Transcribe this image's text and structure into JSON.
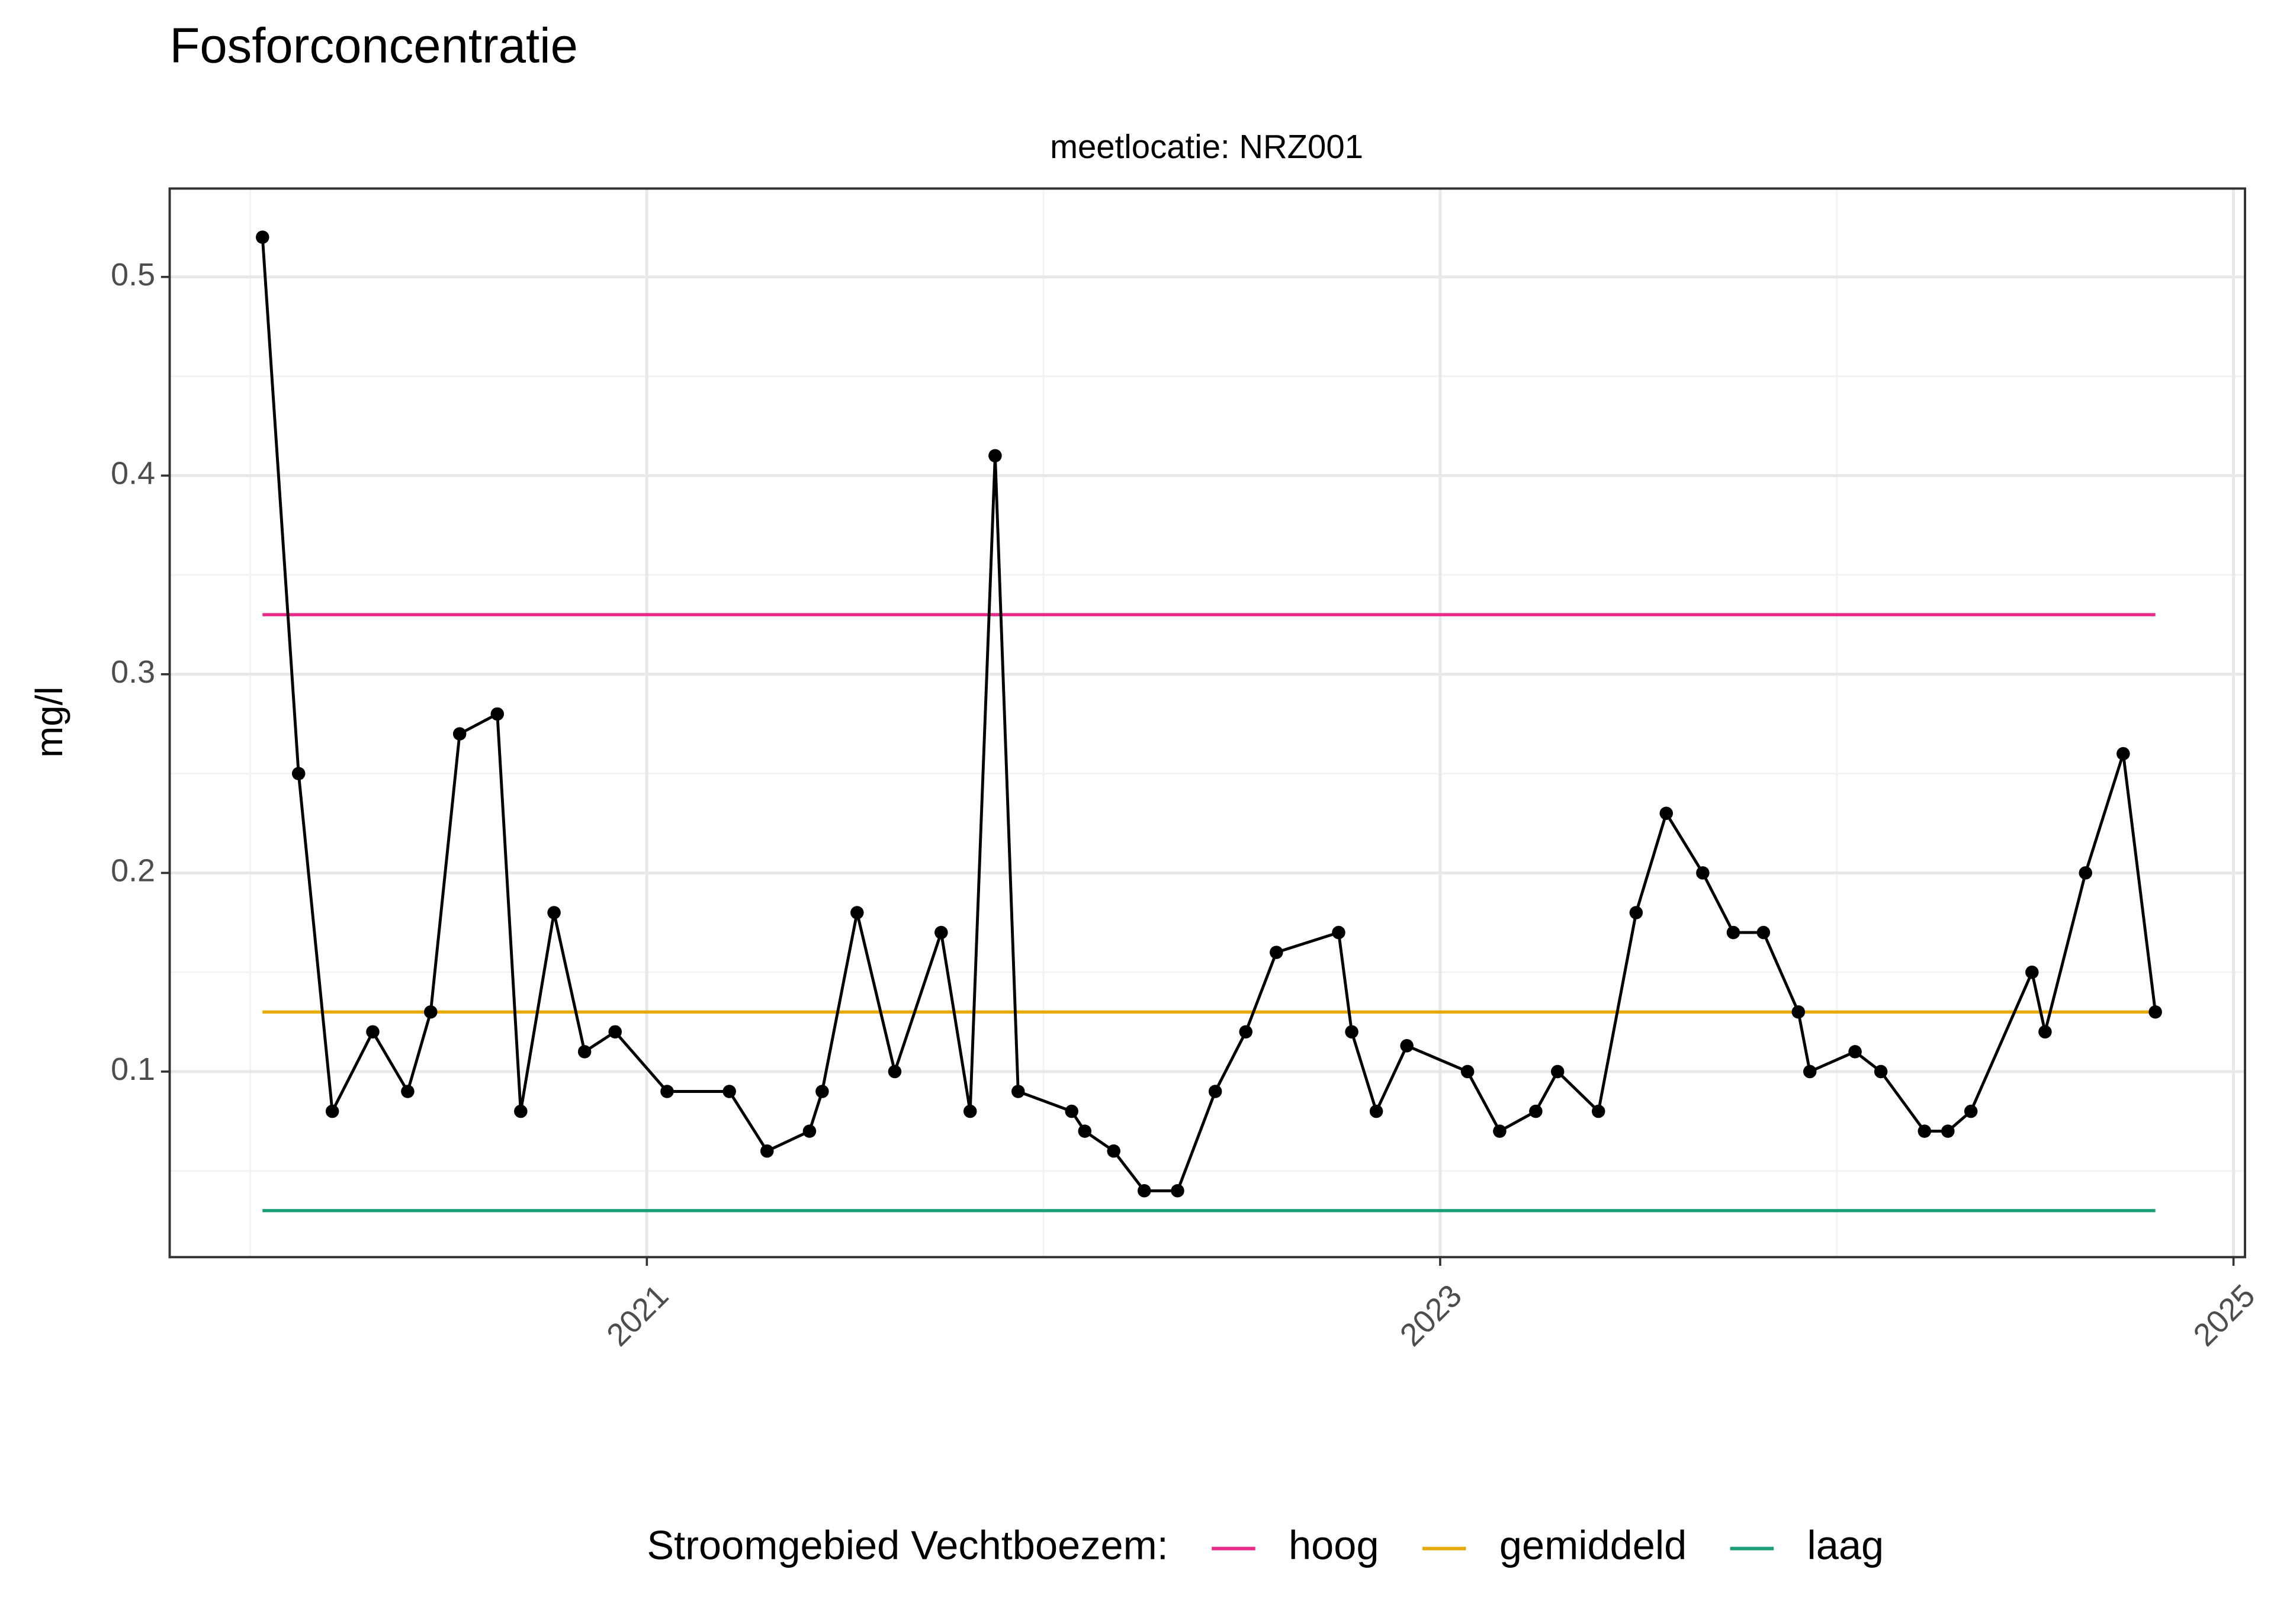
{
  "chart_data": {
    "type": "line",
    "title": "Fosforconcentratie",
    "subtitle": "meetlocatie: NRZ001",
    "y_label": "mg/l",
    "x": [
      2020.031,
      2020.122,
      2020.207,
      2020.309,
      2020.397,
      2020.455,
      2020.528,
      2020.623,
      2020.682,
      2020.766,
      2020.843,
      2020.92,
      2021.051,
      2021.208,
      2021.303,
      2021.41,
      2021.442,
      2021.53,
      2021.625,
      2021.742,
      2021.815,
      2021.878,
      2021.936,
      2022.071,
      2022.104,
      2022.177,
      2022.254,
      2022.338,
      2022.433,
      2022.51,
      2022.587,
      2022.744,
      2022.777,
      2022.839,
      2022.916,
      2023.069,
      2023.15,
      2023.241,
      2023.296,
      2023.399,
      2023.494,
      2023.57,
      2023.662,
      2023.739,
      2023.815,
      2023.903,
      2023.932,
      2024.046,
      2024.111,
      2024.221,
      2024.28,
      2024.338,
      2024.492,
      2024.525,
      2024.627,
      2024.722,
      2024.803
    ],
    "values": [
      0.52,
      0.25,
      0.08,
      0.12,
      0.09,
      0.13,
      0.27,
      0.28,
      0.08,
      0.18,
      0.11,
      0.12,
      0.09,
      0.09,
      0.06,
      0.07,
      0.09,
      0.18,
      0.1,
      0.17,
      0.08,
      0.41,
      0.09,
      0.08,
      0.07,
      0.06,
      0.04,
      0.04,
      0.09,
      0.12,
      0.16,
      0.17,
      0.12,
      0.08,
      0.113,
      0.1,
      0.07,
      0.08,
      0.1,
      0.08,
      0.18,
      0.23,
      0.2,
      0.17,
      0.17,
      0.13,
      0.1,
      0.11,
      0.1,
      0.07,
      0.07,
      0.08,
      0.15,
      0.12,
      0.2,
      0.26,
      0.13
    ],
    "color": "#000000",
    "reference_lines": [
      {
        "name": "hoog",
        "color": "#e7298a",
        "value": 0.33
      },
      {
        "name": "gemiddeld",
        "color": "#e6ab02",
        "value": 0.13
      },
      {
        "name": "laag",
        "color": "#1b9e77",
        "value": 0.03
      }
    ],
    "legend_title": "Stroomgebied Vechtboezem:",
    "legend_position": "bottom",
    "xlim": [
      2019.797,
      2025.029
    ],
    "ylim": [
      0.0066,
      0.5445
    ],
    "xticks": [
      2021,
      2023,
      2025
    ],
    "yticks": [
      0.1,
      0.2,
      0.3,
      0.4,
      0.5
    ],
    "xminorticks": [
      2020,
      2022,
      2024
    ],
    "yminorticks": [
      0.05,
      0.15,
      0.25,
      0.35,
      0.45
    ],
    "grid": true
  }
}
